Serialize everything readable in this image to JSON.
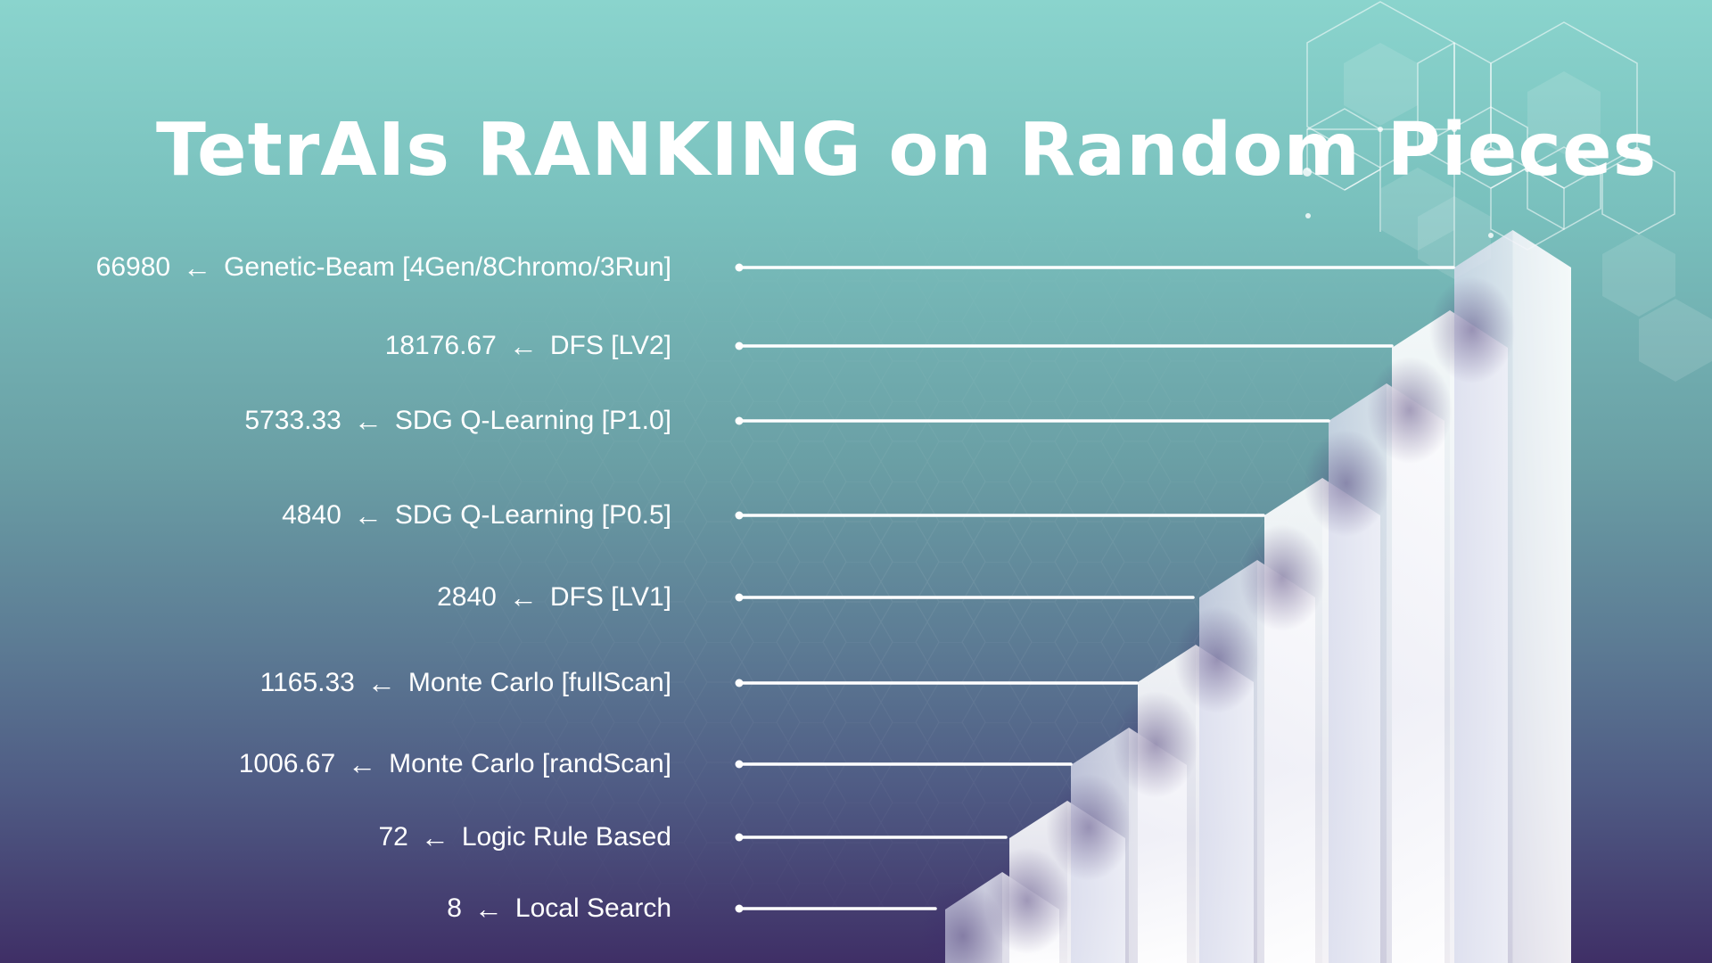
{
  "colors": {
    "text": "#ffffff",
    "line": "#ffffff",
    "background_top": "#8ad4cd",
    "background_bottom": "#3f2f66"
  },
  "icons": {
    "pointer": "left-arrow-icon"
  },
  "arrow_glyph": "←",
  "chart_data": {
    "type": "bar",
    "orientation": "horizontal",
    "title": "TetrAIs RANKING on Random Pieces",
    "categories": [
      "Genetic-Beam [4Gen/8Chromo/3Run]",
      "DFS [LV2]",
      "SDG Q-Learning [P1.0]",
      "SDG Q-Learning [P0.5]",
      "DFS [LV1]",
      "Monte Carlo [fullScan]",
      "Monte Carlo [randScan]",
      "Logic Rule Based",
      "Local Search"
    ],
    "values": [
      66980,
      18176.67,
      5733.33,
      4840,
      2840,
      1165.33,
      1006.67,
      72,
      8
    ],
    "value_labels": [
      "66980",
      "18176.67",
      "5733.33",
      "4840",
      "2840",
      "1165.33",
      "1006.67",
      "72",
      "8"
    ],
    "scale": "log-like (ranked)",
    "legend": "none",
    "grid": false
  }
}
